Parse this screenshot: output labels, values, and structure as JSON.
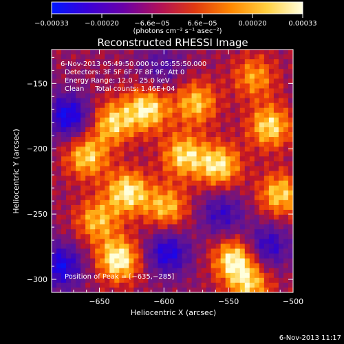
{
  "chart_data": {
    "type": "heatmap",
    "title": "Reconstructed RHESSI Image",
    "xlabel": "Heliocentric X (arcsec)",
    "ylabel": "Heliocentric Y (arcsec)",
    "xlim": [
      -687,
      -500
    ],
    "ylim": [
      -310,
      -124
    ],
    "x_ticks": [
      -650,
      -600,
      -550,
      -500
    ],
    "x_tick_labels": [
      "−650",
      "−600",
      "−550",
      "−500"
    ],
    "y_ticks": [
      -150,
      -200,
      -250,
      -300
    ],
    "y_tick_labels": [
      "−150",
      "−200",
      "−250",
      "−300"
    ],
    "colorbar": {
      "range": [
        -0.00033,
        0.00033
      ],
      "tick_labels": [
        "−0.00033",
        "−0.00020",
        "−6.6e−05",
        "6.6e−05",
        "0.00020",
        "0.00033"
      ],
      "unit_label": "(photons cm⁻² s⁻¹ asec⁻²)",
      "colormap": [
        "#0018ff",
        "#3a00d8",
        "#6a00a8",
        "#b0105a",
        "#e03a10",
        "#ff8800",
        "#ffd040",
        "#ffffe0"
      ]
    },
    "annotations": [
      "6-Nov-2013 05:49:50.000 to 05:55:50.000",
      "Detectors: 3F 5F 6F 7F 8F 9F, Att 0",
      "Energy Range: 12.0 - 25.0 keV",
      "Clean     Total counts: 1.46E+04"
    ],
    "peak_label": "Position of Peak = [−635,−285]",
    "peak": [
      -635,
      -285
    ],
    "hotspots": [
      {
        "x": -635,
        "y": -285,
        "v": 1.0
      },
      {
        "x": -628,
        "y": -233,
        "v": 0.92
      },
      {
        "x": -613,
        "y": -170,
        "v": 0.9
      },
      {
        "x": -545,
        "y": -285,
        "v": 0.95
      },
      {
        "x": -557,
        "y": -213,
        "v": 0.88
      },
      {
        "x": -518,
        "y": -183,
        "v": 0.85
      },
      {
        "x": -660,
        "y": -206,
        "v": 0.8
      },
      {
        "x": -640,
        "y": -180,
        "v": 0.78
      },
      {
        "x": -575,
        "y": -165,
        "v": 0.75
      },
      {
        "x": -598,
        "y": -245,
        "v": 0.72
      },
      {
        "x": -510,
        "y": -235,
        "v": 0.8
      },
      {
        "x": -585,
        "y": -205,
        "v": 0.82
      },
      {
        "x": -530,
        "y": -145,
        "v": 0.62
      },
      {
        "x": -652,
        "y": -255,
        "v": 0.7
      },
      {
        "x": -533,
        "y": -305,
        "v": 0.7
      }
    ],
    "coldspots": [
      {
        "x": -674,
        "y": -175,
        "v": -0.9
      },
      {
        "x": -597,
        "y": -280,
        "v": -0.8
      },
      {
        "x": -555,
        "y": -250,
        "v": -0.6
      },
      {
        "x": -680,
        "y": -290,
        "v": -0.85
      },
      {
        "x": -520,
        "y": -275,
        "v": -0.7
      },
      {
        "x": -602,
        "y": -138,
        "v": -0.4
      }
    ]
  },
  "footer": {
    "timestamp": "6-Nov-2013 11:17"
  }
}
